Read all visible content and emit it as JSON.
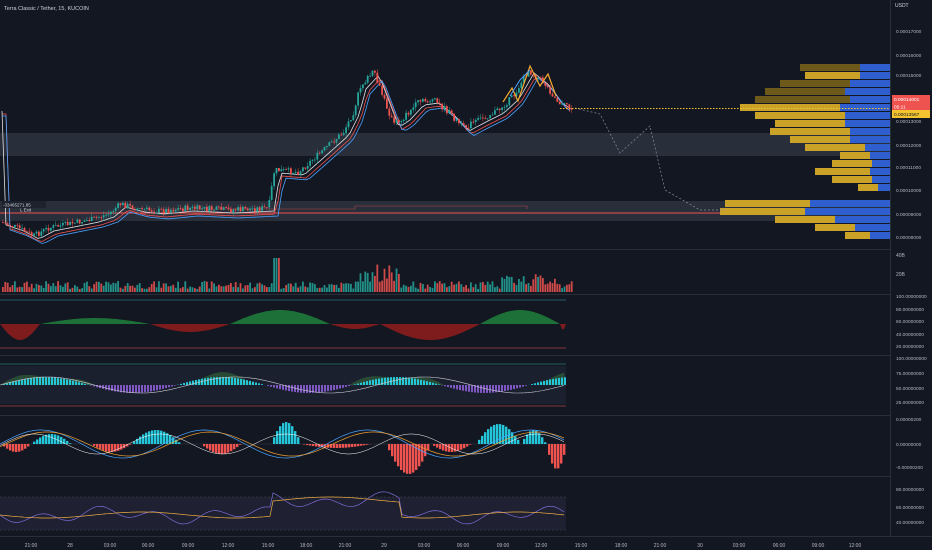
{
  "header": {
    "symbol_info": "Terra Classic / Tether, 15, KUCOIN",
    "currency": "USDT"
  },
  "colors": {
    "background": "#131722",
    "up": "#26a69a",
    "down": "#ef5350",
    "pane_sep": "#2a2e39",
    "axis_text": "#b2b5be",
    "grid": "#1e222d",
    "vp_gold": "#c9a227",
    "vp_gold_dark": "#6d5a1a",
    "vp_blue": "#2f5ecf",
    "last_price": "#f4c430",
    "price_tag_red": "#ef5350"
  },
  "price_axis": {
    "ticks": [
      "0.00017000",
      "0.00016000",
      "0.00015000",
      "0.00013000",
      "0.00012000",
      "0.00011000",
      "0.00010000",
      "0.00009000",
      "0.00008000"
    ],
    "tags": {
      "price_red": "0.00014001",
      "countdown": "05:11",
      "price_yellow": "0.00013567"
    }
  },
  "trade_markers": {
    "position_label": "-33465271.85",
    "exit_label": "L Exit"
  },
  "volume_pane": {
    "ticks": [
      "40B",
      "20B"
    ]
  },
  "pane_rsi_like": {
    "ticks": [
      "100.00000000",
      "80.00000000",
      "60.00000000",
      "40.00000000",
      "20.00000000"
    ]
  },
  "pane_stoch": {
    "ticks": [
      "100.00000000",
      "75.00000000",
      "50.00000000",
      "25.00000000"
    ]
  },
  "pane_macd": {
    "ticks": [
      "0.00000200",
      "0.00000000",
      "-0.00000200"
    ]
  },
  "pane_osc": {
    "ticks": [
      "80.00000000",
      "60.00000000",
      "40.00000000"
    ]
  },
  "time_axis": {
    "labels": [
      "21:00",
      "28",
      "03:00",
      "06:00",
      "09:00",
      "12:00",
      "15:00",
      "18:00",
      "21:00",
      "29",
      "03:00",
      "06:00",
      "09:00",
      "12:00",
      "15:00",
      "18:00",
      "21:00",
      "30",
      "03:00",
      "06:00",
      "09:00",
      "12:00"
    ]
  }
}
